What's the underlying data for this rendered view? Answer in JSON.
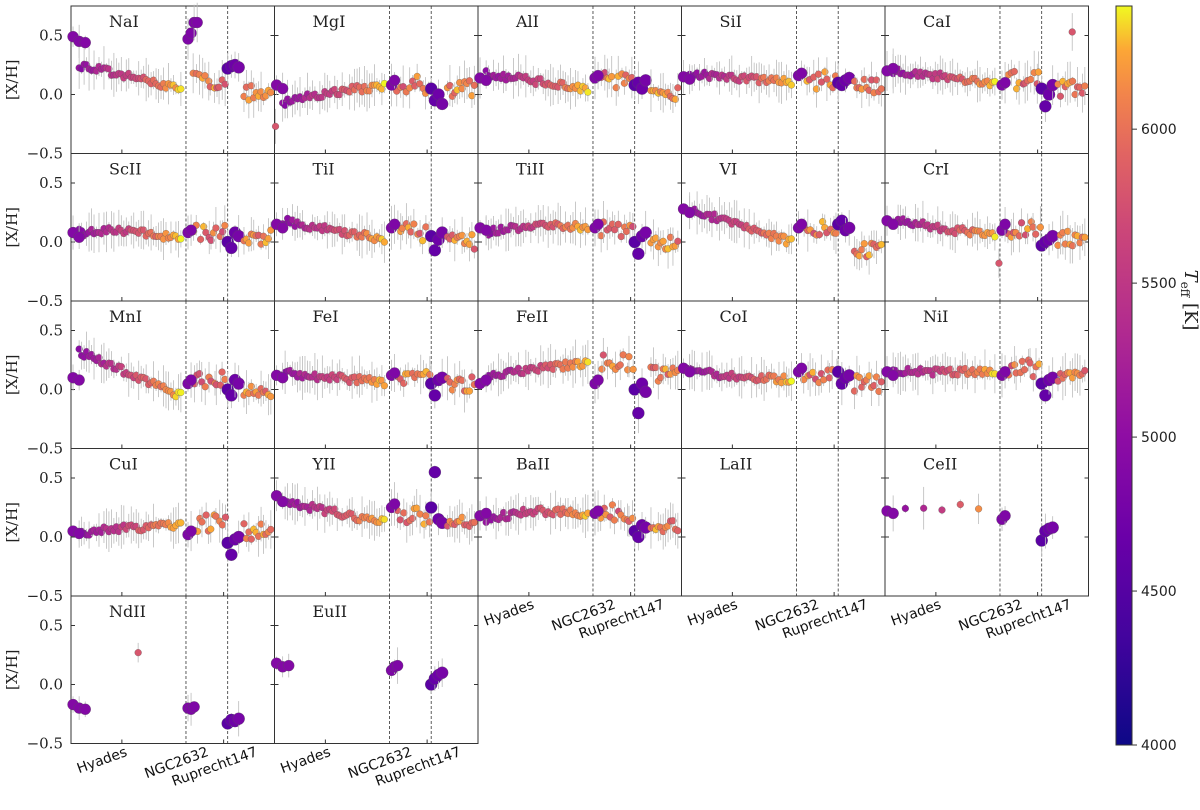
{
  "chart_data": {
    "type": "scatter",
    "title": "",
    "ylabel": "[X/H]",
    "ylim": [
      -0.5,
      0.75
    ],
    "y_ticks": [
      -0.5,
      0.0,
      0.5
    ],
    "y_tick_labels": [
      "−0.5",
      "0.0",
      "0.5"
    ],
    "x_categories": [
      "Hyades",
      "NGC2632",
      "Ruprecht147"
    ],
    "colorbar": {
      "label": "T_eff [K]",
      "label_main": "T",
      "label_sub": "eff",
      "label_unit": " [K]",
      "range": [
        4000,
        6400
      ],
      "ticks": [
        4000,
        4500,
        5000,
        5500,
        6000
      ],
      "colormap": "plasma"
    },
    "panels": [
      {
        "element": "NaI",
        "hyades": {
          "start": 0.25,
          "end": 0.05,
          "shape": "linear"
        },
        "hyades_giants": [
          0.49,
          0.45,
          0.44
        ],
        "ngc_giants": [
          0.47,
          0.52,
          0.61,
          0.61
        ],
        "ngc_mean": 0.12,
        "rup_giants": [
          0.22,
          0.24,
          0.25,
          0.23
        ],
        "rup_mean": 0.02,
        "outliers": []
      },
      {
        "element": "MgI",
        "hyades": {
          "start": -0.1,
          "end": 0.07,
          "shape": "rising"
        },
        "hyades_giants": [
          0.08,
          0.05
        ],
        "ngc_giants": [
          0.08,
          0.12
        ],
        "ngc_mean": 0.08,
        "rup_giants": [
          0.05,
          -0.05,
          0.0,
          -0.08
        ],
        "rup_mean": 0.05,
        "outliers": [
          {
            "x": 0.005,
            "y": -0.27
          }
        ]
      },
      {
        "element": "AlI",
        "hyades": {
          "start": 0.18,
          "end": 0.04,
          "shape": "linear"
        },
        "hyades_giants": [
          0.14,
          0.12
        ],
        "ngc_giants": [
          0.14,
          0.16
        ],
        "ngc_mean": 0.12,
        "rup_giants": [
          0.08,
          0.1,
          0.05,
          0.12
        ],
        "rup_mean": 0.02,
        "outliers": []
      },
      {
        "element": "SiI",
        "hyades": {
          "start": 0.17,
          "end": 0.11,
          "shape": "linear"
        },
        "hyades_giants": [
          0.15,
          0.13
        ],
        "ngc_giants": [
          0.16,
          0.18
        ],
        "ngc_mean": 0.12,
        "rup_giants": [
          0.1,
          0.08,
          0.12,
          0.14
        ],
        "rup_mean": 0.06,
        "outliers": []
      },
      {
        "element": "CaI",
        "hyades": {
          "start": 0.2,
          "end": 0.1,
          "shape": "linear"
        },
        "hyades_giants": [
          0.2,
          0.22
        ],
        "ngc_giants": [
          0.08,
          0.1
        ],
        "ngc_mean": 0.12,
        "rup_giants": [
          0.05,
          -0.1,
          0.0,
          0.08
        ],
        "rup_mean": 0.05,
        "outliers": [
          {
            "x": 0.92,
            "y": 0.53
          }
        ]
      },
      {
        "element": "ScII",
        "hyades": {
          "start": 0.08,
          "end": 0.02,
          "shape": "hump"
        },
        "hyades_giants": [
          0.08,
          0.04
        ],
        "ngc_giants": [
          0.08,
          0.1
        ],
        "ngc_mean": 0.08,
        "rup_giants": [
          0.0,
          -0.05,
          0.08,
          0.05
        ],
        "rup_mean": 0.03,
        "outliers": []
      },
      {
        "element": "TiI",
        "hyades": {
          "start": 0.18,
          "end": 0.02,
          "shape": "linear"
        },
        "hyades_giants": [
          0.15,
          0.12
        ],
        "ngc_giants": [
          0.12,
          0.15
        ],
        "ngc_mean": 0.08,
        "rup_giants": [
          0.05,
          -0.07,
          0.02,
          0.08
        ],
        "rup_mean": 0.0,
        "outliers": []
      },
      {
        "element": "TiII",
        "hyades": {
          "start": 0.08,
          "end": 0.12,
          "shape": "hump"
        },
        "hyades_giants": [
          0.12,
          0.1
        ],
        "ngc_giants": [
          0.12,
          0.15
        ],
        "ngc_mean": 0.12,
        "rup_giants": [
          0.0,
          -0.1,
          0.05,
          0.08
        ],
        "rup_mean": 0.0,
        "outliers": []
      },
      {
        "element": "VI",
        "hyades": {
          "start": 0.28,
          "end": 0.0,
          "shape": "linear"
        },
        "hyades_giants": [
          0.28,
          0.25
        ],
        "ngc_giants": [
          0.12,
          0.15
        ],
        "ngc_mean": 0.1,
        "rup_giants": [
          0.15,
          0.18,
          0.1,
          0.12
        ],
        "rup_mean": -0.06,
        "outliers": []
      },
      {
        "element": "CrI",
        "hyades": {
          "start": 0.18,
          "end": 0.05,
          "shape": "linear"
        },
        "hyades_giants": [
          0.18,
          0.15
        ],
        "ngc_giants": [
          0.1,
          0.15
        ],
        "ngc_mean": 0.1,
        "rup_giants": [
          -0.03,
          0.0,
          0.02,
          0.05
        ],
        "rup_mean": 0.03,
        "outliers": [
          {
            "x": 0.56,
            "y": -0.18
          }
        ]
      },
      {
        "element": "MnI",
        "hyades": {
          "start": 0.32,
          "end": -0.05,
          "shape": "linear"
        },
        "hyades_giants": [
          0.1,
          0.08
        ],
        "ngc_giants": [
          0.05,
          0.08
        ],
        "ngc_mean": 0.08,
        "rup_giants": [
          0.0,
          -0.05,
          0.08,
          0.05
        ],
        "rup_mean": -0.02,
        "outliers": []
      },
      {
        "element": "FeI",
        "hyades": {
          "start": 0.14,
          "end": 0.06,
          "shape": "linear"
        },
        "hyades_giants": [
          0.12,
          0.1
        ],
        "ngc_giants": [
          0.12,
          0.14
        ],
        "ngc_mean": 0.1,
        "rup_giants": [
          0.05,
          -0.05,
          0.08,
          0.1
        ],
        "rup_mean": 0.05,
        "outliers": []
      },
      {
        "element": "FeII",
        "hyades": {
          "start": 0.08,
          "end": 0.22,
          "shape": "rising"
        },
        "hyades_giants": [
          0.05,
          0.08
        ],
        "ngc_giants": [
          0.05,
          0.08
        ],
        "ngc_mean": 0.22,
        "rup_giants": [
          0.0,
          -0.2,
          0.05,
          -0.02
        ],
        "rup_mean": 0.12,
        "outliers": []
      },
      {
        "element": "CoI",
        "hyades": {
          "start": 0.15,
          "end": 0.08,
          "shape": "linear"
        },
        "hyades_giants": [
          0.18,
          0.15
        ],
        "ngc_giants": [
          0.15,
          0.18
        ],
        "ngc_mean": 0.1,
        "rup_giants": [
          0.15,
          0.05,
          0.1,
          0.12
        ],
        "rup_mean": 0.05,
        "outliers": []
      },
      {
        "element": "NiI",
        "hyades": {
          "start": 0.15,
          "end": 0.15,
          "shape": "linear"
        },
        "hyades_giants": [
          0.15,
          0.12
        ],
        "ngc_giants": [
          0.12,
          0.15
        ],
        "ngc_mean": 0.18,
        "rup_giants": [
          0.05,
          -0.05,
          0.08,
          0.1
        ],
        "rup_mean": 0.1,
        "outliers": []
      },
      {
        "element": "CuI",
        "hyades": {
          "start": 0.02,
          "end": 0.1,
          "shape": "rising"
        },
        "hyades_giants": [
          0.05,
          0.03
        ],
        "ngc_giants": [
          0.02,
          0.05
        ],
        "ngc_mean": 0.12,
        "rup_giants": [
          -0.05,
          -0.15,
          -0.02,
          0.0
        ],
        "rup_mean": 0.05,
        "outliers": []
      },
      {
        "element": "YII",
        "hyades": {
          "start": 0.3,
          "end": 0.12,
          "shape": "linear"
        },
        "hyades_giants": [
          0.35,
          0.3
        ],
        "ngc_giants": [
          0.25,
          0.28
        ],
        "ngc_mean": 0.18,
        "rup_giants": [
          0.25,
          0.55,
          0.15,
          0.12
        ],
        "rup_mean": 0.1,
        "outliers": []
      },
      {
        "element": "BaII",
        "hyades": {
          "start": 0.15,
          "end": 0.2,
          "shape": "hump"
        },
        "hyades_giants": [
          0.18,
          0.2
        ],
        "ngc_giants": [
          0.2,
          0.22
        ],
        "ngc_mean": 0.2,
        "rup_giants": [
          0.05,
          0.0,
          0.1,
          0.08
        ],
        "rup_mean": 0.1,
        "outliers": []
      },
      {
        "element": "LaII",
        "hyades": null,
        "hyades_giants": [],
        "ngc_giants": [],
        "ngc_mean": null,
        "rup_giants": [],
        "rup_mean": null,
        "outliers": []
      },
      {
        "element": "CeII",
        "hyades": {
          "start": 0.22,
          "end": 0.27,
          "shape": "sparse"
        },
        "hyades_giants": [
          0.22,
          0.2
        ],
        "ngc_giants": [
          0.15,
          0.18
        ],
        "ngc_mean": null,
        "rup_giants": [
          -0.03,
          0.05,
          0.07,
          0.08
        ],
        "rup_mean": null,
        "outliers": []
      },
      {
        "element": "NdII",
        "hyades": null,
        "hyades_giants": [
          -0.17,
          -0.2,
          -0.21
        ],
        "ngc_giants": [
          -0.2,
          -0.21,
          -0.19
        ],
        "ngc_mean": null,
        "rup_giants": [
          -0.33,
          -0.3,
          -0.31,
          -0.29
        ],
        "rup_mean": null,
        "outliers": [
          {
            "x": 0.33,
            "y": 0.27
          }
        ]
      },
      {
        "element": "EuII",
        "hyades": null,
        "hyades_giants": [
          0.18,
          0.15,
          0.16
        ],
        "ngc_giants": [
          0.12,
          0.15,
          0.16
        ],
        "ngc_mean": null,
        "rup_giants": [
          0.0,
          0.05,
          0.08,
          0.1
        ],
        "rup_mean": null,
        "outliers": []
      }
    ]
  }
}
